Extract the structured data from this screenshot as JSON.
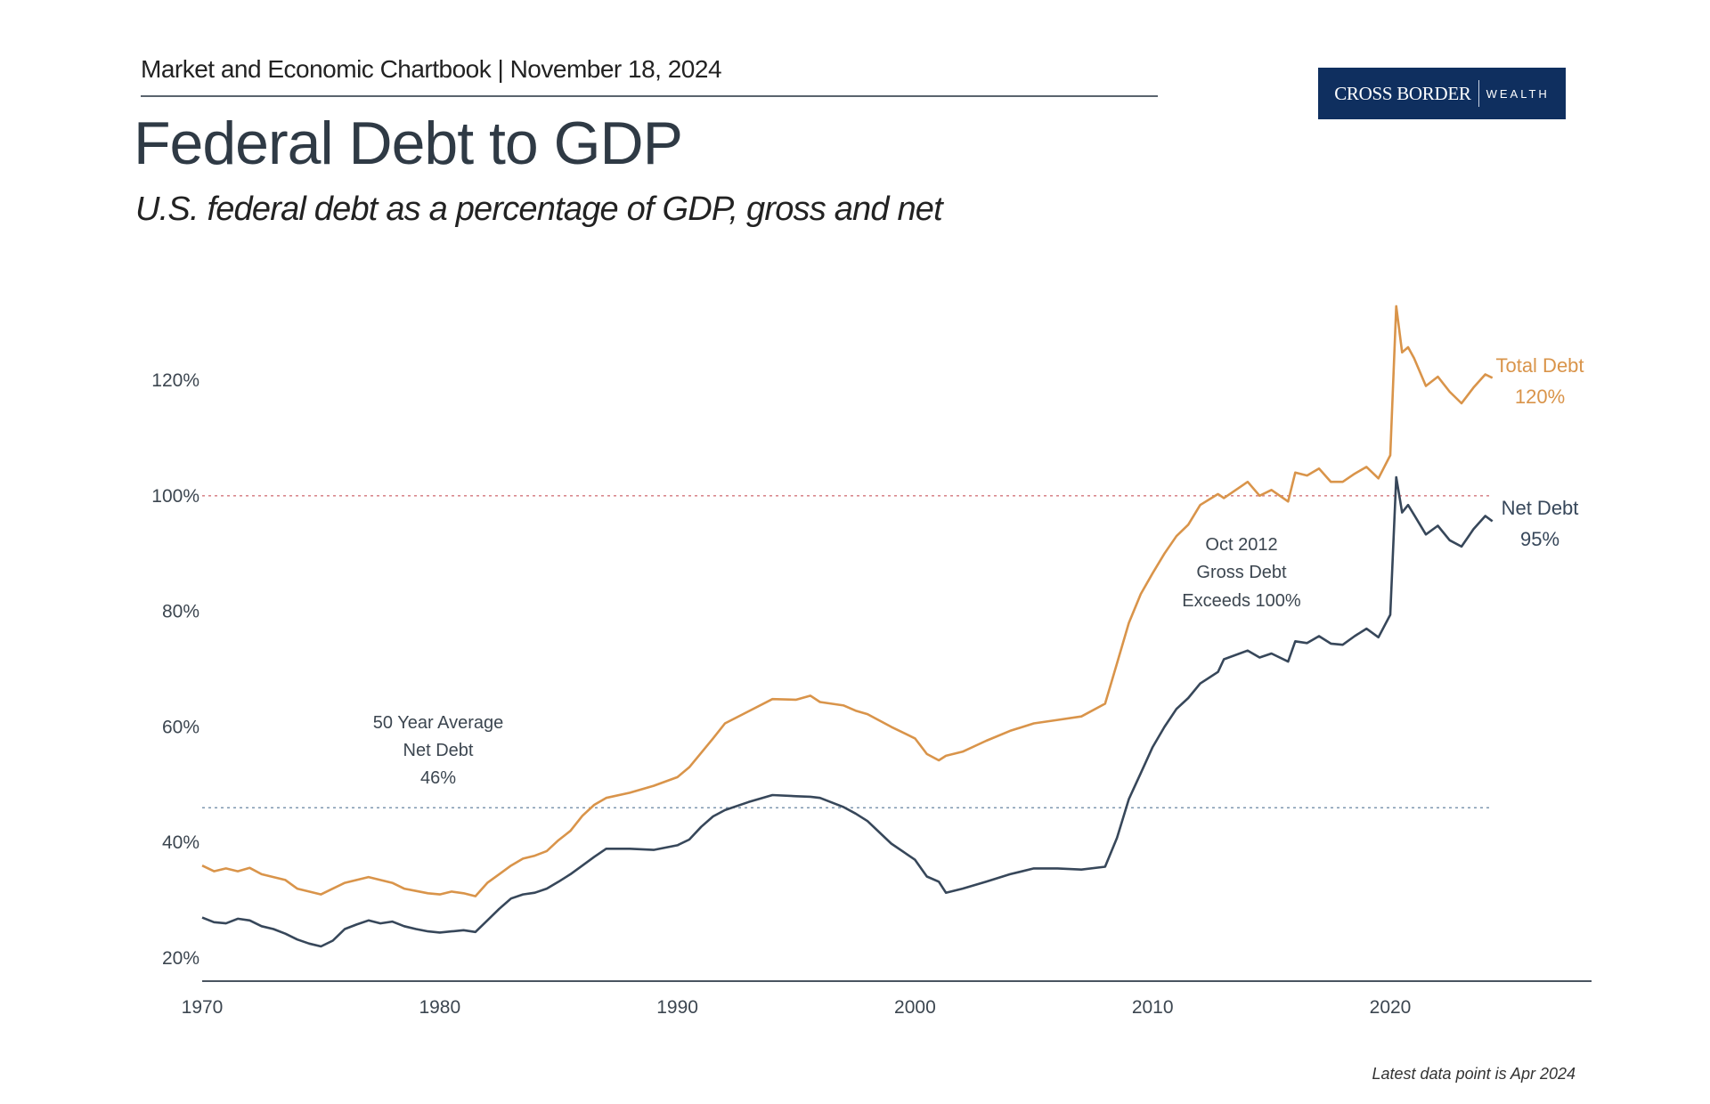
{
  "header": {
    "kicker": "Market and Economic Chartbook | November 18, 2024",
    "title": "Federal Debt to GDP",
    "subtitle": "U.S. federal debt as a percentage of GDP, gross and net"
  },
  "logo": {
    "text_main": "CROSS BORDER",
    "text_secondary": "WEALTH",
    "color": "#0f2f5f"
  },
  "footer": {
    "note": "Latest data point is Apr 2024"
  },
  "chart_data": {
    "type": "line",
    "title": "Federal Debt to GDP",
    "xlabel": "",
    "ylabel": "",
    "xlim": [
      1970,
      2028
    ],
    "ylim": [
      17,
      134
    ],
    "x_ticks": [
      "1970",
      "1980",
      "1990",
      "2000",
      "2010",
      "2020"
    ],
    "y_ticks": [
      "20%",
      "40%",
      "60%",
      "80%",
      "100%",
      "120%"
    ],
    "grid": false,
    "reference_lines": [
      {
        "value": 100,
        "color": "#d98a8f",
        "style": "dotted"
      },
      {
        "value": 46,
        "color": "#7f98b0",
        "style": "dotted"
      }
    ],
    "annotations": [
      {
        "lines": [
          "50 Year Average",
          "Net Debt",
          "46%"
        ]
      },
      {
        "lines": [
          "Oct 2012",
          "Gross Debt",
          "Exceeds 100%"
        ]
      }
    ],
    "series": [
      {
        "name": "Total Debt",
        "end_label": "120%",
        "color": "#d9944a",
        "x": [
          1970,
          1970.5,
          1971,
          1971.5,
          1972,
          1972.5,
          1973,
          1973.5,
          1974,
          1974.5,
          1975,
          1975.5,
          1976,
          1976.5,
          1977,
          1977.5,
          1978,
          1978.5,
          1979,
          1979.5,
          1980,
          1980.5,
          1981,
          1981.5,
          1982,
          1982.5,
          1983,
          1983.5,
          1984,
          1984.5,
          1985,
          1985.5,
          1986,
          1986.5,
          1987,
          1988,
          1989,
          1990,
          1990.5,
          1991,
          1991.5,
          1992,
          1993,
          1994,
          1995,
          1995.6,
          1996,
          1997,
          1997.5,
          1998,
          1999,
          2000,
          2000.5,
          2001,
          2001.3,
          2002,
          2003,
          2004,
          2005,
          2006,
          2007,
          2008,
          2008.5,
          2009,
          2009.5,
          2010,
          2010.5,
          2011,
          2011.5,
          2012,
          2012.75,
          2013,
          2014,
          2014.5,
          2015,
          2015.7,
          2016,
          2016.5,
          2017,
          2017.5,
          2018,
          2018.5,
          2019,
          2019.5,
          2020,
          2020.25,
          2020.5,
          2020.75,
          2021,
          2021.5,
          2022,
          2022.5,
          2023,
          2023.5,
          2024,
          2024.3
        ],
        "y": [
          36,
          35,
          35.5,
          35,
          35.6,
          34.5,
          34,
          33.5,
          32,
          31.5,
          31,
          32,
          33,
          33.5,
          34,
          33.5,
          33,
          32,
          31.6,
          31.2,
          31,
          31.5,
          31.2,
          30.7,
          33,
          34.5,
          36,
          37.2,
          37.7,
          38.5,
          40.4,
          42,
          44.6,
          46.5,
          47.7,
          48.6,
          49.8,
          51.3,
          53,
          55.5,
          58,
          60.6,
          62.7,
          64.8,
          64.7,
          65.4,
          64.3,
          63.7,
          62.8,
          62.2,
          60,
          58,
          55.3,
          54.2,
          55,
          55.7,
          57.6,
          59.3,
          60.6,
          61.2,
          61.8,
          64,
          71,
          78,
          83,
          86.6,
          90,
          93,
          95,
          98.4,
          100.3,
          99.6,
          102.4,
          100,
          101,
          99,
          104,
          103.5,
          104.7,
          102.4,
          102.4,
          103.8,
          105,
          103,
          107,
          132.8,
          124.8,
          125.7,
          123.8,
          119,
          120.6,
          118,
          116,
          118.7,
          121,
          120.4
        ]
      },
      {
        "name": "Net Debt",
        "end_label": "95%",
        "color": "#37475a",
        "x": [
          1970,
          1970.5,
          1971,
          1971.5,
          1972,
          1972.5,
          1973,
          1973.5,
          1974,
          1974.5,
          1975,
          1975.5,
          1976,
          1976.5,
          1977,
          1977.5,
          1978,
          1978.5,
          1979,
          1979.5,
          1980,
          1980.5,
          1981,
          1981.5,
          1982,
          1982.5,
          1983,
          1983.5,
          1984,
          1984.5,
          1985,
          1985.5,
          1986,
          1986.5,
          1987,
          1988,
          1989,
          1990,
          1990.5,
          1991,
          1991.5,
          1992,
          1993,
          1994,
          1995,
          1995.6,
          1996,
          1997,
          1997.5,
          1998,
          1999,
          2000,
          2000.5,
          2001,
          2001.3,
          2002,
          2003,
          2004,
          2005,
          2006,
          2007,
          2008,
          2008.5,
          2009,
          2009.5,
          2010,
          2010.5,
          2011,
          2011.5,
          2012,
          2012.75,
          2013,
          2014,
          2014.5,
          2015,
          2015.7,
          2016,
          2016.5,
          2017,
          2017.5,
          2018,
          2018.5,
          2019,
          2019.5,
          2020,
          2020.25,
          2020.5,
          2020.75,
          2021,
          2021.5,
          2022,
          2022.5,
          2023,
          2023.5,
          2024,
          2024.3
        ],
        "y": [
          27,
          26.2,
          26,
          26.8,
          26.5,
          25.5,
          25,
          24.2,
          23.2,
          22.5,
          22,
          23,
          25,
          25.8,
          26.5,
          26,
          26.3,
          25.5,
          25,
          24.6,
          24.4,
          24.6,
          24.8,
          24.5,
          26.5,
          28.5,
          30.3,
          31,
          31.3,
          32,
          33.2,
          34.5,
          36,
          37.5,
          38.9,
          38.9,
          38.7,
          39.5,
          40.5,
          42.7,
          44.5,
          45.6,
          47,
          48.2,
          48,
          47.9,
          47.7,
          46.1,
          45,
          43.7,
          39.8,
          37,
          34.1,
          33.2,
          31.3,
          32,
          33.2,
          34.5,
          35.5,
          35.5,
          35.3,
          35.8,
          40.8,
          47.5,
          52,
          56.5,
          60,
          63.1,
          65,
          67.5,
          69.5,
          71.7,
          73.2,
          72,
          72.7,
          71.3,
          74.8,
          74.5,
          75.7,
          74.4,
          74.2,
          75.7,
          77,
          75.5,
          79.4,
          103.2,
          97.1,
          98.4,
          96.7,
          93.3,
          94.8,
          92.3,
          91.2,
          94.2,
          96.5,
          95.6
        ]
      }
    ]
  }
}
